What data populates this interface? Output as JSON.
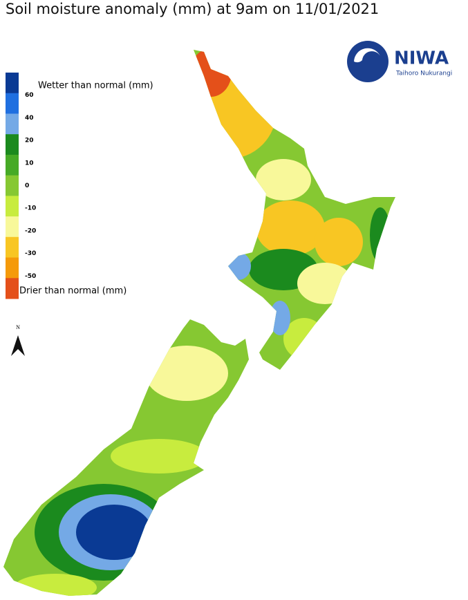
{
  "title": "Soil moisture anomaly (mm) at 9am on 11/01/2021",
  "legend": {
    "top_label": "Wetter than normal (mm)",
    "bottom_label": "Drier than normal (mm)",
    "ticks": [
      60,
      40,
      20,
      10,
      0,
      -10,
      -20,
      -30,
      -50
    ],
    "colors": [
      "#0a3a94",
      "#1f6fe0",
      "#74a9e6",
      "#1b8a1e",
      "#46aa26",
      "#86c832",
      "#c8ec3e",
      "#f8f89a",
      "#f8c623",
      "#f59a0a",
      "#e4501a"
    ]
  },
  "north_arrow": "N",
  "logo": {
    "name": "NIWA",
    "tagline": "Taihoro Nukurangi"
  }
}
